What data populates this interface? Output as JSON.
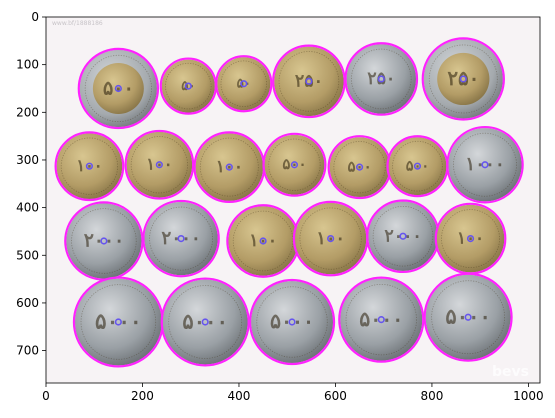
{
  "image": {
    "width": 1024,
    "height": 768,
    "watermark_top": "www.bf/1888186",
    "watermark_bottom": "bevs"
  },
  "axes": {
    "xlim": [
      0,
      1024
    ],
    "ylim": [
      768,
      0
    ],
    "x_ticks": [
      0,
      200,
      400,
      600,
      800,
      1000
    ],
    "y_ticks": [
      0,
      100,
      200,
      300,
      400,
      500,
      600,
      700
    ]
  },
  "colors": {
    "ring": "#ff22ff",
    "center_dot": "#6655ee",
    "bronze": "#b59f6b",
    "silver": "#9ea3a8",
    "background": "#f7f3f5"
  },
  "coins": [
    {
      "cx": 150,
      "cy": 150,
      "r": 80,
      "type": "bimetal",
      "label": "۵۰۰"
    },
    {
      "cx": 295,
      "cy": 145,
      "r": 55,
      "type": "bronze",
      "label": "۵۰"
    },
    {
      "cx": 410,
      "cy": 140,
      "r": 55,
      "type": "bronze",
      "label": "۵۰"
    },
    {
      "cx": 545,
      "cy": 135,
      "r": 72,
      "type": "bronze",
      "label": "۲۵۰"
    },
    {
      "cx": 695,
      "cy": 130,
      "r": 72,
      "type": "silver",
      "label": "۲۵۰"
    },
    {
      "cx": 865,
      "cy": 130,
      "r": 82,
      "type": "bimetal",
      "label": "۲۵۰"
    },
    {
      "cx": 90,
      "cy": 313,
      "r": 68,
      "type": "bronze",
      "label": "۱۰۰"
    },
    {
      "cx": 235,
      "cy": 310,
      "r": 68,
      "type": "bronze",
      "label": "۱۰۰"
    },
    {
      "cx": 380,
      "cy": 315,
      "r": 70,
      "type": "bronze",
      "label": "۱۰۰"
    },
    {
      "cx": 515,
      "cy": 310,
      "r": 62,
      "type": "bronze",
      "label": "۵۰۰"
    },
    {
      "cx": 650,
      "cy": 315,
      "r": 62,
      "type": "bronze",
      "label": "۵۰۰"
    },
    {
      "cx": 770,
      "cy": 313,
      "r": 60,
      "type": "bronze",
      "label": "۵۰۰"
    },
    {
      "cx": 910,
      "cy": 310,
      "r": 76,
      "type": "silver",
      "label": "۱۰۰۰"
    },
    {
      "cx": 120,
      "cy": 470,
      "r": 78,
      "type": "silver",
      "label": "۲۰۰۰"
    },
    {
      "cx": 280,
      "cy": 465,
      "r": 76,
      "type": "silver",
      "label": "۲۰۰۰"
    },
    {
      "cx": 450,
      "cy": 470,
      "r": 72,
      "type": "bronze",
      "label": "۱۰۰"
    },
    {
      "cx": 590,
      "cy": 465,
      "r": 74,
      "type": "bronze",
      "label": "۱۰۰"
    },
    {
      "cx": 740,
      "cy": 460,
      "r": 72,
      "type": "silver",
      "label": "۲۰۰۰"
    },
    {
      "cx": 880,
      "cy": 465,
      "r": 70,
      "type": "bronze",
      "label": "۱۰۰"
    },
    {
      "cx": 150,
      "cy": 640,
      "r": 90,
      "type": "silver",
      "label": "۵۰۰۰"
    },
    {
      "cx": 330,
      "cy": 640,
      "r": 88,
      "type": "silver",
      "label": "۵۰۰۰"
    },
    {
      "cx": 510,
      "cy": 640,
      "r": 85,
      "type": "silver",
      "label": "۵۰۰۰"
    },
    {
      "cx": 695,
      "cy": 635,
      "r": 85,
      "type": "silver",
      "label": "۵۰۰۰"
    },
    {
      "cx": 875,
      "cy": 630,
      "r": 88,
      "type": "silver",
      "label": "۵۰۰۰"
    }
  ]
}
